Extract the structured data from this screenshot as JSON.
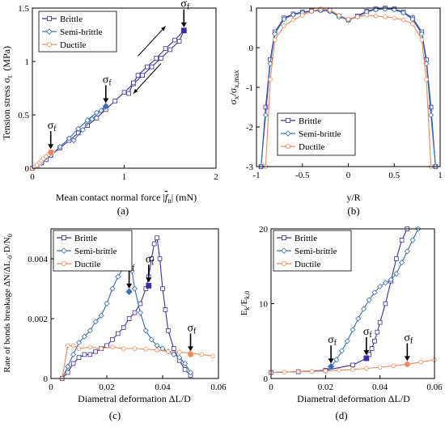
{
  "colors": {
    "Brittle": "#3b2f9e",
    "Semi-brittle": "#3a6fb0",
    "Ductile": "#ee8a5a",
    "arrow": "#000000"
  },
  "chart_data": [
    {
      "id": "a",
      "type": "line",
      "panel_label": "(a)",
      "xlabel_text": "Mean contact normal force |",
      "xlabel_symbol": "f",
      "xlabel_sub": "n",
      "xlabel_unit": "| (mN)",
      "ylabel_main": "Tension stress σ",
      "ylabel_sub": "t",
      "ylabel_unit": "(MPa)",
      "xlim": [
        0,
        2
      ],
      "ylim": [
        0,
        1.5
      ],
      "xticks": [
        0,
        1,
        2
      ],
      "yticks": [
        0,
        0.5,
        1,
        1.5
      ],
      "xtick_labels": [
        "0",
        "1",
        "2"
      ],
      "ytick_labels": [
        "0",
        "0.5",
        "1",
        "1.5"
      ],
      "legend": {
        "placement": "top-left",
        "entries": [
          "Brittle",
          "Semi-brittle",
          "Ductile"
        ]
      },
      "series": [
        {
          "name": "Brittle",
          "marker": "square",
          "x": [
            0.0,
            0.05,
            0.1,
            0.15,
            0.2,
            0.3,
            0.4,
            0.5,
            0.6,
            0.7,
            0.8,
            0.9,
            1.0,
            1.1,
            1.2,
            1.3,
            1.4,
            1.5,
            1.6,
            1.65,
            1.55,
            1.45,
            1.35,
            1.25,
            1.15,
            1.1,
            1.05
          ],
          "y": [
            0.0,
            0.02,
            0.05,
            0.08,
            0.12,
            0.19,
            0.26,
            0.33,
            0.4,
            0.47,
            0.55,
            0.63,
            0.71,
            0.79,
            0.87,
            0.95,
            1.03,
            1.11,
            1.19,
            1.29,
            1.2,
            1.12,
            1.03,
            0.95,
            0.87,
            0.8,
            0.7
          ]
        },
        {
          "name": "Semi-brittle",
          "marker": "diamond",
          "x": [
            0.0,
            0.1,
            0.2,
            0.3,
            0.4,
            0.5,
            0.6,
            0.7,
            0.8,
            0.75,
            0.65,
            0.55,
            0.45
          ],
          "y": [
            0.0,
            0.05,
            0.12,
            0.2,
            0.28,
            0.37,
            0.45,
            0.52,
            0.58,
            0.54,
            0.46,
            0.36,
            0.26
          ]
        },
        {
          "name": "Ductile",
          "marker": "circle",
          "x": [
            0.0,
            0.02,
            0.05,
            0.08,
            0.1,
            0.12,
            0.15,
            0.18,
            0.2,
            0.22
          ],
          "y": [
            0.0,
            0.01,
            0.03,
            0.05,
            0.07,
            0.09,
            0.11,
            0.13,
            0.14,
            0.15
          ]
        }
      ],
      "annotations": [
        {
          "label": "σ",
          "sub": "f",
          "x": 0.2,
          "y": 0.15,
          "series": "Ductile"
        },
        {
          "label": "σ",
          "sub": "f",
          "x": 0.8,
          "y": 0.58,
          "series": "Semi-brittle"
        },
        {
          "label": "σ",
          "sub": "f",
          "x": 1.65,
          "y": 1.29,
          "series": "Brittle"
        }
      ],
      "direction_arrows": [
        {
          "from": [
            1.15,
            1.05
          ],
          "to": [
            1.45,
            1.33
          ]
        },
        {
          "from": [
            1.4,
            0.98
          ],
          "to": [
            1.1,
            0.7
          ]
        }
      ]
    },
    {
      "id": "b",
      "type": "line",
      "panel_label": "(b)",
      "xlabel_text": "y/R",
      "ylabel_main": "σ",
      "ylabel_sub": "x",
      "ylabel_tail": "/σ",
      "ylabel_sub2": "x,max",
      "xlim": [
        -1,
        1
      ],
      "ylim": [
        -3,
        1
      ],
      "xticks": [
        -1,
        -0.5,
        0,
        0.5,
        1
      ],
      "yticks": [
        -3,
        -2,
        -1,
        0,
        1
      ],
      "xtick_labels": [
        "-1",
        "-0.5",
        "0",
        "0.5",
        "1"
      ],
      "ytick_labels": [
        "-3",
        "-2",
        "-1",
        "0",
        "1"
      ],
      "legend": {
        "placement": "bottom-left",
        "entries": [
          "Brittle",
          "Semi-brittle",
          "Ductile"
        ]
      },
      "series": [
        {
          "name": "Brittle",
          "marker": "square",
          "x": [
            -0.95,
            -0.9,
            -0.85,
            -0.8,
            -0.7,
            -0.6,
            -0.5,
            -0.4,
            -0.3,
            -0.2,
            -0.1,
            0.0,
            0.1,
            0.2,
            0.3,
            0.4,
            0.5,
            0.6,
            0.7,
            0.8,
            0.85,
            0.9,
            0.95
          ],
          "y": [
            -3.0,
            -1.5,
            -0.3,
            0.4,
            0.75,
            0.85,
            0.9,
            0.93,
            0.95,
            0.93,
            0.8,
            0.7,
            0.8,
            0.92,
            0.98,
            1.0,
            0.98,
            0.9,
            0.75,
            0.4,
            -0.3,
            -1.5,
            -3.0
          ]
        },
        {
          "name": "Semi-brittle",
          "marker": "diamond",
          "x": [
            -0.95,
            -0.9,
            -0.85,
            -0.8,
            -0.7,
            -0.6,
            -0.5,
            -0.4,
            -0.3,
            -0.2,
            -0.1,
            0.0,
            0.1,
            0.2,
            0.3,
            0.4,
            0.5,
            0.6,
            0.7,
            0.8,
            0.85,
            0.9,
            0.95
          ],
          "y": [
            -3.0,
            -1.7,
            -0.4,
            0.35,
            0.72,
            0.83,
            0.88,
            0.92,
            0.94,
            0.92,
            0.78,
            0.7,
            0.78,
            0.9,
            0.96,
            0.98,
            0.96,
            0.88,
            0.72,
            0.35,
            -0.4,
            -1.7,
            -3.0
          ]
        },
        {
          "name": "Ductile",
          "marker": "circle",
          "x": [
            -0.9,
            -0.85,
            -0.8,
            -0.7,
            -0.6,
            -0.5,
            -0.4,
            -0.3,
            -0.2,
            -0.1,
            0.0,
            0.1,
            0.2,
            0.3,
            0.4,
            0.5,
            0.6,
            0.7,
            0.8,
            0.85,
            0.9
          ],
          "y": [
            -3.0,
            -0.8,
            0.2,
            0.55,
            0.7,
            0.82,
            0.92,
            0.98,
            0.95,
            0.82,
            0.72,
            0.78,
            0.82,
            0.8,
            0.78,
            0.75,
            0.7,
            0.6,
            0.2,
            -0.8,
            -3.0
          ]
        }
      ]
    },
    {
      "id": "c",
      "type": "line",
      "panel_label": "(c)",
      "xlabel_text": "Diametral deformation ΔL/D",
      "ylabel_main": "Rate of bonds breakage ΔN/ΔL",
      "ylabel_sub": "-0",
      "ylabel_tail": "·D/N",
      "ylabel_sub2": "0",
      "xlim": [
        0,
        0.06
      ],
      "ylim": [
        0,
        0.005
      ],
      "xticks": [
        0,
        0.02,
        0.04,
        0.06
      ],
      "yticks": [
        0,
        0.002,
        0.004
      ],
      "xtick_labels": [
        "0",
        "0.02",
        "0.04",
        "0.06"
      ],
      "ytick_labels": [
        "0",
        "0.002",
        "0.004"
      ],
      "legend": {
        "placement": "top-left",
        "entries": [
          "Brittle",
          "Semi-brittle",
          "Ductile"
        ]
      },
      "series": [
        {
          "name": "Brittle",
          "marker": "square",
          "x": [
            0.004,
            0.006,
            0.008,
            0.01,
            0.012,
            0.014,
            0.016,
            0.018,
            0.02,
            0.022,
            0.024,
            0.026,
            0.028,
            0.03,
            0.032,
            0.034,
            0.035,
            0.036,
            0.037,
            0.038,
            0.039,
            0.04,
            0.041,
            0.042,
            0.044,
            0.046,
            0.048,
            0.05
          ],
          "y": [
            0.0,
            0.0002,
            0.0005,
            0.0007,
            0.0008,
            0.0008,
            0.0009,
            0.001,
            0.0011,
            0.0013,
            0.0015,
            0.0017,
            0.002,
            0.0022,
            0.0025,
            0.003,
            0.0034,
            0.004,
            0.0045,
            0.0047,
            0.004,
            0.003,
            0.0023,
            0.0016,
            0.001,
            0.0006,
            0.0003,
            0.0001
          ]
        },
        {
          "name": "Semi-brittle",
          "marker": "diamond",
          "x": [
            0.004,
            0.006,
            0.008,
            0.01,
            0.012,
            0.014,
            0.016,
            0.018,
            0.02,
            0.022,
            0.024,
            0.026,
            0.027,
            0.028,
            0.029,
            0.03,
            0.032,
            0.034,
            0.036,
            0.038,
            0.04,
            0.042,
            0.044,
            0.046,
            0.048,
            0.05
          ],
          "y": [
            0.0,
            0.0004,
            0.0008,
            0.0012,
            0.0014,
            0.0016,
            0.0019,
            0.0021,
            0.0025,
            0.003,
            0.0034,
            0.0037,
            0.004,
            0.0039,
            0.0036,
            0.003,
            0.0022,
            0.0016,
            0.0013,
            0.0011,
            0.001,
            0.0009,
            0.0008,
            0.0007,
            0.0005,
            0.0002
          ]
        },
        {
          "name": "Ductile",
          "marker": "circle",
          "x": [
            0.004,
            0.006,
            0.008,
            0.01,
            0.014,
            0.018,
            0.022,
            0.026,
            0.03,
            0.034,
            0.038,
            0.042,
            0.046,
            0.05,
            0.054,
            0.058
          ],
          "y": [
            0.0,
            0.0011,
            0.0011,
            0.001,
            0.00105,
            0.001,
            0.00105,
            0.001,
            0.001,
            0.00098,
            0.00095,
            0.0009,
            0.00088,
            0.00085,
            0.0008,
            0.00075
          ]
        }
      ],
      "annotations": [
        {
          "label": "σ",
          "sub": "f",
          "x": 0.028,
          "y": 0.0029,
          "series": "Semi-brittle"
        },
        {
          "label": "σ",
          "sub": "f",
          "x": 0.035,
          "y": 0.0031,
          "series": "Brittle"
        },
        {
          "label": "σ",
          "sub": "f",
          "x": 0.05,
          "y": 0.0008,
          "series": "Ductile"
        }
      ]
    },
    {
      "id": "d",
      "type": "line",
      "panel_label": "(d)",
      "xlabel_text": "Diametral deformation ΔL/D",
      "ylabel_main": "E",
      "ylabel_sub": "k",
      "ylabel_tail": "/E",
      "ylabel_sub2": "k,0",
      "xlim": [
        0,
        0.06
      ],
      "ylim": [
        0,
        20
      ],
      "xticks": [
        0,
        0.02,
        0.04,
        0.06
      ],
      "yticks": [
        0,
        10,
        20
      ],
      "xtick_labels": [
        "0",
        "0.02",
        "0.04",
        "0.06"
      ],
      "ytick_labels": [
        "0",
        "10",
        "20"
      ],
      "legend": {
        "placement": "top-left",
        "entries": [
          "Brittle",
          "Semi-brittle",
          "Ductile"
        ]
      },
      "series": [
        {
          "name": "Brittle",
          "marker": "square",
          "x": [
            0.0,
            0.01,
            0.02,
            0.03,
            0.035,
            0.036,
            0.037,
            0.038,
            0.039,
            0.04,
            0.042,
            0.044,
            0.046,
            0.048,
            0.05
          ],
          "y": [
            0.8,
            0.9,
            1.1,
            1.8,
            2.7,
            3.2,
            4.0,
            5.0,
            6.2,
            7.5,
            10.0,
            13.0,
            16.0,
            18.5,
            20.0
          ]
        },
        {
          "name": "Semi-brittle",
          "marker": "diamond",
          "x": [
            0.0,
            0.01,
            0.02,
            0.022,
            0.024,
            0.026,
            0.028,
            0.03,
            0.032,
            0.034,
            0.036,
            0.038,
            0.04,
            0.042,
            0.044,
            0.046,
            0.048,
            0.05,
            0.052,
            0.054
          ],
          "y": [
            0.8,
            0.9,
            1.0,
            1.6,
            2.5,
            3.7,
            5.0,
            6.5,
            8.0,
            9.3,
            10.5,
            11.5,
            12.3,
            12.8,
            13.2,
            14.0,
            15.5,
            17.0,
            18.5,
            20.0
          ]
        },
        {
          "name": "Ductile",
          "marker": "circle",
          "x": [
            0.0,
            0.005,
            0.01,
            0.015,
            0.02,
            0.025,
            0.03,
            0.035,
            0.04,
            0.045,
            0.05,
            0.055,
            0.06
          ],
          "y": [
            0.8,
            0.85,
            0.9,
            0.95,
            1.0,
            1.1,
            1.2,
            1.35,
            1.5,
            1.7,
            1.9,
            2.2,
            2.5
          ]
        }
      ],
      "annotations": [
        {
          "label": "σ",
          "sub": "f",
          "x": 0.022,
          "y": 1.6,
          "series": "Semi-brittle"
        },
        {
          "label": "σ",
          "sub": "f",
          "x": 0.035,
          "y": 2.7,
          "series": "Brittle"
        },
        {
          "label": "σ",
          "sub": "f",
          "x": 0.05,
          "y": 1.9,
          "series": "Ductile"
        }
      ]
    }
  ]
}
